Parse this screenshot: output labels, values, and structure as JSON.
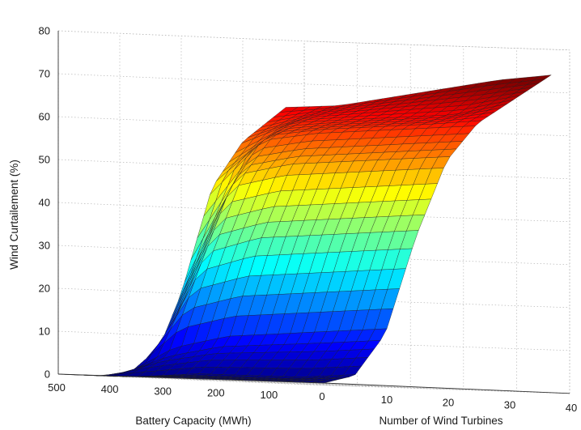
{
  "chart_data": {
    "type": "surface",
    "title": "",
    "xlabel": "Battery Capacity (MWh)",
    "ylabel": "Number of Wind Turbines",
    "zlabel": "Wind Curtailement (%)",
    "xlim": [
      0,
      500
    ],
    "ylim": [
      0,
      40
    ],
    "zlim": [
      0,
      80
    ],
    "x_ticks": [
      "500",
      "400",
      "300",
      "200",
      "100",
      "0"
    ],
    "y_ticks": [
      "10",
      "20",
      "30",
      "40"
    ],
    "z_ticks": [
      "0",
      "10",
      "20",
      "30",
      "40",
      "50",
      "60",
      "70",
      "80"
    ],
    "grid": true,
    "colormap": "jet",
    "battery_capacity_mwh": [
      0,
      100,
      200,
      300,
      400,
      500
    ],
    "number_of_wind_turbines": [
      0,
      5,
      10,
      15,
      20,
      25,
      30,
      35
    ],
    "wind_curtailment_pct": [
      [
        0,
        2,
        12,
        35,
        53,
        62,
        67,
        72
      ],
      [
        0,
        1,
        11,
        34,
        52,
        61,
        64,
        70
      ],
      [
        0,
        1,
        10,
        33,
        51,
        60,
        63,
        68
      ],
      [
        0,
        1,
        9,
        32,
        50,
        59,
        62,
        66
      ],
      [
        0,
        0,
        6,
        28,
        47,
        57,
        61,
        64
      ],
      [
        0,
        0,
        0,
        2,
        20,
        45,
        56,
        62
      ]
    ]
  }
}
